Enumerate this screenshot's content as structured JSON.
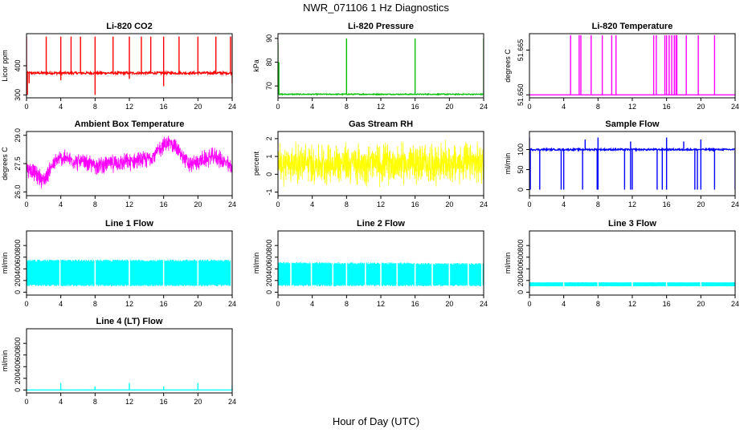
{
  "page": {
    "title": "NWR_071106  1 Hz Diagnostics",
    "xlabel": "Hour of Day (UTC)"
  },
  "chart_data": [
    {
      "id": "co2",
      "type": "line",
      "title": "Li-820 CO2",
      "ylabel": "Licor ppm",
      "xlim": [
        0,
        24
      ],
      "ylim": [
        290,
        510
      ],
      "xticks": [
        0,
        4,
        8,
        12,
        16,
        20,
        24
      ],
      "yticks": [
        300,
        400
      ],
      "color": "#ff0000",
      "series": [
        {
          "baseline": 375,
          "noise": 4,
          "spikes": [
            [
              0,
              500
            ],
            [
              2.3,
              500
            ],
            [
              4,
              500
            ],
            [
              5.2,
              500
            ],
            [
              6.3,
              500
            ],
            [
              8,
              500
            ],
            [
              10.1,
              500
            ],
            [
              12,
              500
            ],
            [
              13.4,
              500
            ],
            [
              14.5,
              500
            ],
            [
              16,
              500
            ],
            [
              17.8,
              500
            ],
            [
              20,
              500
            ],
            [
              22.1,
              500
            ],
            [
              23.8,
              500
            ],
            [
              24,
              500
            ]
          ],
          "dips": [
            [
              0.1,
              300
            ],
            [
              0.3,
              340
            ],
            [
              4,
              350
            ],
            [
              8,
              300
            ],
            [
              12,
              355
            ],
            [
              16,
              330
            ],
            [
              24,
              340
            ]
          ]
        }
      ]
    },
    {
      "id": "pressure",
      "type": "line",
      "title": "Li-820 Pressure",
      "ylabel": "kPa",
      "xlim": [
        0,
        24
      ],
      "ylim": [
        65,
        92
      ],
      "xticks": [
        0,
        4,
        8,
        12,
        16,
        20,
        24
      ],
      "yticks": [
        70,
        80,
        90
      ],
      "color": "#00c000",
      "series": [
        {
          "baseline": 66.5,
          "noise": 0.2,
          "spikes": [
            [
              0,
              88
            ],
            [
              0.1,
              80
            ],
            [
              8,
              90
            ],
            [
              16,
              90
            ],
            [
              24,
              90
            ]
          ],
          "dips": []
        }
      ]
    },
    {
      "id": "licor_temp",
      "type": "line",
      "title": "Li-820 Temperature",
      "ylabel": "degrees C",
      "xlim": [
        0,
        24
      ],
      "ylim": [
        51.649,
        51.6705
      ],
      "xticks": [
        0,
        4,
        8,
        12,
        16,
        20,
        24
      ],
      "yticks": [
        51.65,
        51.665
      ],
      "yticklabels": [
        "51.650",
        "51.665"
      ],
      "color": "#ff00ff",
      "series": [
        {
          "baseline": 51.65,
          "noise": 0,
          "spikes": [
            [
              4.8,
              51.67
            ],
            [
              5.8,
              51.67
            ],
            [
              6.0,
              51.67
            ],
            [
              7.2,
              51.67
            ],
            [
              8.5,
              51.67
            ],
            [
              9.6,
              51.67
            ],
            [
              10.1,
              51.67
            ],
            [
              14.5,
              51.67
            ],
            [
              14.8,
              51.67
            ],
            [
              15.8,
              51.67
            ],
            [
              16.0,
              51.67
            ],
            [
              16.3,
              51.67
            ],
            [
              16.6,
              51.67
            ],
            [
              16.9,
              51.67
            ],
            [
              17.1,
              51.67
            ],
            [
              17.2,
              51.67
            ],
            [
              18.3,
              51.67
            ],
            [
              19.7,
              51.67
            ],
            [
              21.6,
              51.67
            ]
          ],
          "dips": []
        }
      ]
    },
    {
      "id": "box_temp",
      "type": "line",
      "title": "Ambient Box Temperature",
      "ylabel": "degrees C",
      "xlim": [
        0,
        24
      ],
      "ylim": [
        25.8,
        29.2
      ],
      "xticks": [
        0,
        4,
        8,
        12,
        16,
        20,
        24
      ],
      "yticks": [
        26.0,
        27.5,
        29.0
      ],
      "yticklabels": [
        "26.0",
        "27.5",
        "29.0"
      ],
      "color": "#ff00ff",
      "series": [
        {
          "profile": [
            [
              0,
              27.3
            ],
            [
              1,
              27.0
            ],
            [
              2,
              26.6
            ],
            [
              3,
              27.4
            ],
            [
              4,
              27.8
            ],
            [
              6,
              27.6
            ],
            [
              8,
              27.4
            ],
            [
              10,
              27.5
            ],
            [
              12,
              27.6
            ],
            [
              14,
              27.7
            ],
            [
              15,
              28.0
            ],
            [
              16,
              28.5
            ],
            [
              17,
              28.6
            ],
            [
              18,
              28.0
            ],
            [
              19,
              27.4
            ],
            [
              20,
              27.6
            ],
            [
              22,
              27.9
            ],
            [
              24,
              27.3
            ]
          ],
          "noise": 0.55
        }
      ]
    },
    {
      "id": "rh",
      "type": "line",
      "title": "Gas Stream RH",
      "ylabel": "percent",
      "xlim": [
        0,
        24
      ],
      "ylim": [
        -1.2,
        2.4
      ],
      "xticks": [
        0,
        4,
        8,
        12,
        16,
        20,
        24
      ],
      "yticks": [
        -1,
        0,
        1,
        2
      ],
      "color": "#ffff00",
      "series": [
        {
          "profile": [
            [
              0,
              0.6
            ],
            [
              24,
              0.6
            ]
          ],
          "noise": 1.35
        }
      ]
    },
    {
      "id": "sample_flow",
      "type": "line",
      "title": "Sample Flow",
      "ylabel": "ml/min",
      "xlim": [
        0,
        24
      ],
      "ylim": [
        -15,
        145
      ],
      "xticks": [
        0,
        4,
        8,
        12,
        16,
        20,
        24
      ],
      "yticks": [
        0,
        50,
        100
      ],
      "color": "#0000ff",
      "series": [
        {
          "baseline": 100,
          "noise": 2,
          "spikes": [
            [
              0,
              130
            ],
            [
              6.5,
              125
            ],
            [
              8,
              130
            ],
            [
              11.8,
              120
            ],
            [
              16,
              130
            ],
            [
              18,
              120
            ],
            [
              20,
              125
            ]
          ],
          "dips": [
            [
              0.1,
              0
            ],
            [
              1.2,
              0
            ],
            [
              3.7,
              0
            ],
            [
              4,
              0
            ],
            [
              6.2,
              0
            ],
            [
              7.9,
              0
            ],
            [
              8,
              0
            ],
            [
              11.1,
              0
            ],
            [
              11.8,
              0
            ],
            [
              12,
              0
            ],
            [
              14.9,
              0
            ],
            [
              15.5,
              0
            ],
            [
              16,
              0
            ],
            [
              19.3,
              0
            ],
            [
              19.6,
              0
            ],
            [
              20,
              0
            ],
            [
              21.6,
              0
            ],
            [
              24,
              0
            ]
          ]
        }
      ]
    },
    {
      "id": "line1",
      "type": "line",
      "title": "Line 1 Flow",
      "ylabel": "ml/min",
      "xlim": [
        0,
        24
      ],
      "ylim": [
        -50,
        1050
      ],
      "xticks": [
        0,
        4,
        8,
        12,
        16,
        20,
        24
      ],
      "yticks": [
        0,
        200,
        400,
        600,
        800
      ],
      "color": "#00ffff",
      "series": [
        {
          "band": [
            [
              0,
              100,
              560
            ],
            [
              24,
              100,
              560
            ]
          ],
          "gaps": [
            3.9,
            8,
            12,
            16,
            20,
            23.9
          ]
        }
      ]
    },
    {
      "id": "line2",
      "type": "line",
      "title": "Line 2 Flow",
      "ylabel": "ml/min",
      "xlim": [
        0,
        24
      ],
      "ylim": [
        -50,
        1050
      ],
      "xticks": [
        0,
        4,
        8,
        12,
        16,
        20,
        24
      ],
      "yticks": [
        0,
        200,
        400,
        600,
        800
      ],
      "color": "#00ffff",
      "series": [
        {
          "band": [
            [
              0,
              100,
              520
            ],
            [
              24,
              100,
              500
            ]
          ],
          "gaps": [
            1.5,
            3.9,
            6.4,
            8,
            10.2,
            12,
            13.9,
            16,
            18.0,
            20,
            22.2,
            23.8
          ]
        }
      ]
    },
    {
      "id": "line3",
      "type": "line",
      "title": "Line 3 Flow",
      "ylabel": "ml/min",
      "xlim": [
        0,
        24
      ],
      "ylim": [
        -50,
        1050
      ],
      "xticks": [
        0,
        4,
        8,
        12,
        16,
        20,
        24
      ],
      "yticks": [
        0,
        200,
        400,
        600,
        800
      ],
      "color": "#00ffff",
      "series": [
        {
          "band": [
            [
              0,
              100,
              170
            ],
            [
              24,
              100,
              170
            ]
          ],
          "gaps": [
            4,
            8,
            12,
            16,
            20
          ]
        }
      ]
    },
    {
      "id": "line4",
      "type": "line",
      "title": "Line 4 (LT) Flow",
      "ylabel": "ml/min",
      "xlim": [
        0,
        24
      ],
      "ylim": [
        -50,
        1050
      ],
      "xticks": [
        0,
        4,
        8,
        12,
        16,
        20,
        24
      ],
      "yticks": [
        0,
        200,
        400,
        600,
        800
      ],
      "color": "#00ffff",
      "series": [
        {
          "baseline": 0,
          "noise": 1,
          "spikes": [
            [
              4,
              120
            ],
            [
              8,
              60
            ],
            [
              12,
              120
            ],
            [
              16,
              60
            ],
            [
              20,
              120
            ],
            [
              24,
              80
            ]
          ],
          "dips": []
        }
      ]
    }
  ]
}
